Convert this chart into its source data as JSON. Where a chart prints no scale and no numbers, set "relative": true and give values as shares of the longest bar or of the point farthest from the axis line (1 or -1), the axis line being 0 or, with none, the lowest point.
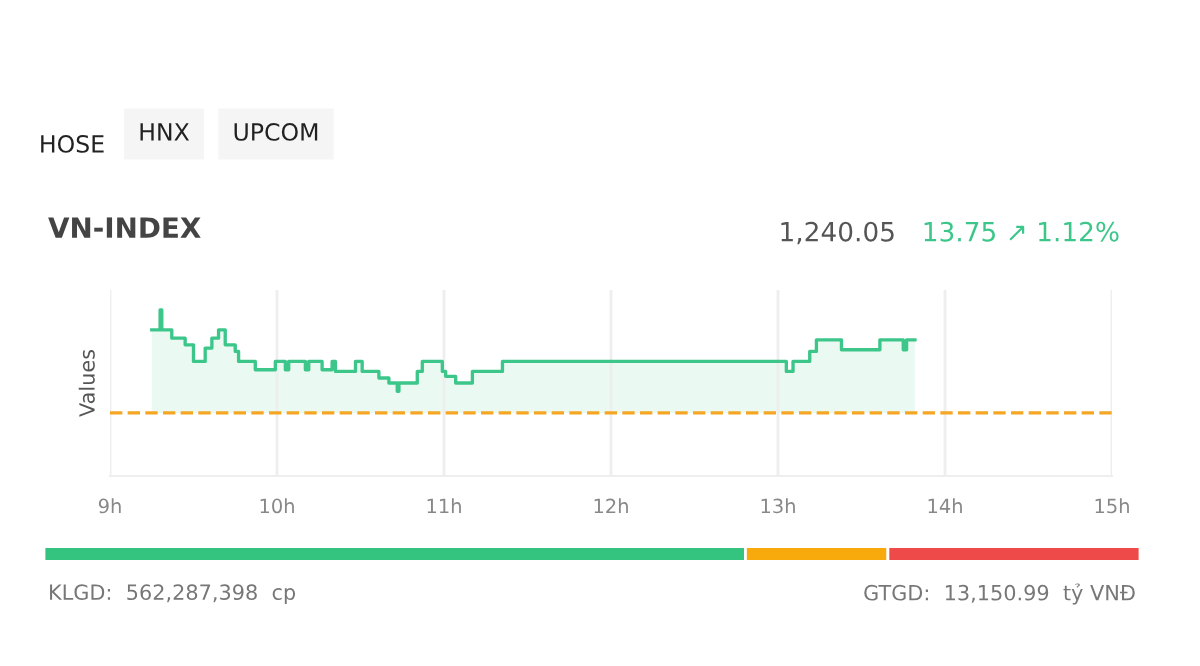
{
  "chart_data": [
    {
      "type": "area",
      "title": "VN-INDEX",
      "ylabel": "Values",
      "relative": true,
      "grid": "x",
      "annotations": [
        "HOSE",
        "HNX",
        "UPCOM",
        "1,240.05",
        "13.75 ↗ 1.12%"
      ],
      "xlim": [
        9,
        15
      ],
      "xticks": [
        {
          "value": 9,
          "label": "9h"
        },
        {
          "value": 10,
          "label": "10h"
        },
        {
          "value": 11,
          "label": "11h"
        },
        {
          "value": 12,
          "label": "12h"
        },
        {
          "value": 13,
          "label": "13h"
        },
        {
          "value": 14,
          "label": "14h"
        },
        {
          "value": 15,
          "label": "15h"
        }
      ],
      "ref_lines": [
        {
          "axis": "y",
          "value": 0.38,
          "color": "#f5a623",
          "line_style": "dashed"
        }
      ],
      "series": [
        {
          "color": "#3cc68a",
          "x": [
            9.25,
            9.3,
            9.3,
            9.31,
            9.31,
            9.37,
            9.37,
            9.45,
            9.45,
            9.5,
            9.5,
            9.57,
            9.57,
            9.61,
            9.61,
            9.65,
            9.65,
            9.69,
            9.69,
            9.75,
            9.75,
            9.77,
            9.77,
            9.87,
            9.87,
            9.99,
            9.99,
            10.05,
            10.05,
            10.07,
            10.07,
            10.17,
            10.17,
            10.19,
            10.19,
            10.27,
            10.27,
            10.33,
            10.33,
            10.35,
            10.35,
            10.47,
            10.47,
            10.51,
            10.51,
            10.61,
            10.61,
            10.67,
            10.67,
            10.72,
            10.72,
            10.73,
            10.73,
            10.84,
            10.84,
            10.87,
            10.87,
            10.99,
            10.99,
            11.01,
            11.01,
            11.07,
            11.07,
            11.17,
            11.17,
            11.35,
            11.35,
            13.03,
            13.03,
            13.05,
            13.05,
            13.09,
            13.09,
            13.19,
            13.19,
            13.23,
            13.23,
            13.38,
            13.38,
            13.61,
            13.61,
            13.75,
            13.75,
            13.77,
            13.77,
            13.82
          ],
          "values": [
            0.88,
            0.88,
            1.0,
            1.0,
            0.88,
            0.88,
            0.83,
            0.83,
            0.79,
            0.79,
            0.69,
            0.69,
            0.77,
            0.77,
            0.83,
            0.83,
            0.88,
            0.88,
            0.79,
            0.79,
            0.75,
            0.75,
            0.69,
            0.69,
            0.64,
            0.64,
            0.69,
            0.69,
            0.64,
            0.64,
            0.69,
            0.69,
            0.64,
            0.64,
            0.69,
            0.69,
            0.64,
            0.64,
            0.69,
            0.69,
            0.63,
            0.63,
            0.69,
            0.69,
            0.63,
            0.63,
            0.59,
            0.59,
            0.56,
            0.56,
            0.51,
            0.51,
            0.56,
            0.56,
            0.63,
            0.63,
            0.69,
            0.69,
            0.63,
            0.63,
            0.6,
            0.6,
            0.56,
            0.56,
            0.63,
            0.63,
            0.69,
            0.69,
            0.69,
            0.69,
            0.63,
            0.63,
            0.69,
            0.69,
            0.75,
            0.75,
            0.82,
            0.82,
            0.76,
            0.76,
            0.82,
            0.82,
            0.76,
            0.76,
            0.82,
            0.82
          ]
        }
      ]
    },
    {
      "type": "bar",
      "orientation": "horizontal",
      "stacked": true,
      "relative": true,
      "categories": [
        null
      ],
      "annotations": [
        "KLGD:  562,287,398  cp",
        "GTGD:  13,150.99  tỷ VNĐ"
      ],
      "series": [
        {
          "color": "#34c47f",
          "values": [
            0.64
          ]
        },
        {
          "color": "#f8a90b",
          "values": [
            0.13
          ]
        },
        {
          "color": "#ef4a4a",
          "values": [
            0.23
          ]
        }
      ]
    }
  ]
}
